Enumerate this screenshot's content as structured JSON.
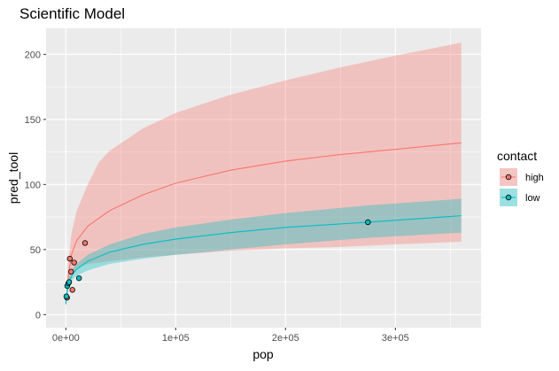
{
  "chart_data": {
    "type": "line",
    "title": "Scientific Model",
    "xlabel": "pop",
    "ylabel": "pred_tool",
    "xlim": [
      -18000,
      378000
    ],
    "ylim": [
      -10,
      220
    ],
    "x_ticks": [
      0,
      100000,
      200000,
      300000
    ],
    "x_tick_labels": [
      "0e+00",
      "1e+05",
      "2e+05",
      "3e+05"
    ],
    "y_ticks": [
      0,
      50,
      100,
      150,
      200
    ],
    "y_tick_labels": [
      "0",
      "50",
      "100",
      "150",
      "200"
    ],
    "grid": true,
    "legend": {
      "title": "contact",
      "position": "right",
      "entries": [
        "high",
        "low"
      ]
    },
    "colors": {
      "high": "#F8766D",
      "low": "#00BFC4",
      "panel": "#EBEBEB",
      "grid": "#FFFFFF"
    },
    "series": [
      {
        "name": "high",
        "line": {
          "x": [
            1200,
            5000,
            10000,
            20000,
            40000,
            70000,
            100000,
            150000,
            200000,
            250000,
            300000,
            360000
          ],
          "y": [
            22,
            46,
            57,
            68,
            80,
            92,
            101,
            111,
            118,
            123,
            127,
            132
          ]
        },
        "band": {
          "x": [
            1200,
            5000,
            10000,
            20000,
            30000,
            40000,
            70000,
            100000,
            150000,
            200000,
            250000,
            300000,
            360000
          ],
          "lower": [
            13,
            30,
            36,
            39,
            40,
            41,
            44,
            46,
            49,
            51,
            52,
            54,
            56
          ],
          "upper": [
            30,
            62,
            80,
            100,
            117,
            126,
            143,
            155,
            169,
            180,
            190,
            199,
            209
          ]
        },
        "points": {
          "x": [
            1100,
            3600,
            4800,
            6000,
            7500,
            17500
          ],
          "y": [
            13,
            43,
            33,
            19,
            40,
            55
          ]
        }
      },
      {
        "name": "low",
        "line": {
          "x": [
            0,
            1000,
            3000,
            6000,
            10000,
            20000,
            40000,
            70000,
            100000,
            150000,
            200000,
            275000,
            360000
          ],
          "y": [
            8,
            18,
            25,
            31,
            35,
            41,
            48,
            54,
            58,
            63,
            67,
            71,
            76
          ]
        },
        "band": {
          "x": [
            0,
            1000,
            3000,
            6000,
            10000,
            20000,
            40000,
            70000,
            100000,
            150000,
            200000,
            275000,
            360000
          ],
          "lower": [
            5,
            15,
            22,
            27,
            30,
            34,
            39,
            43,
            46,
            50,
            54,
            59,
            63
          ],
          "upper": [
            12,
            22,
            29,
            35,
            39,
            46,
            54,
            62,
            67,
            73,
            78,
            84,
            89
          ]
        },
        "points": {
          "x": [
            500,
            1300,
            2300,
            3000,
            12000,
            275000
          ],
          "y": [
            14,
            22,
            24,
            25,
            28,
            71
          ]
        }
      }
    ]
  }
}
